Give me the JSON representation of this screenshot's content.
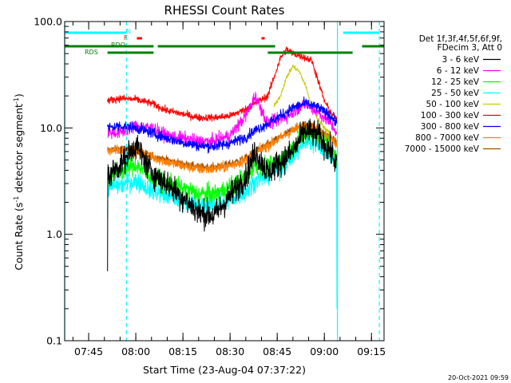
{
  "chart_data": {
    "type": "line",
    "title": "RHESSI Count Rates",
    "xlabel": "Start Time (23-Aug-04 07:37:22)",
    "ylabel_main": "Count Rate (s",
    "ylabel_sup1": "-1",
    "ylabel_mid": " detector segment",
    "ylabel_sup2": "-1",
    "ylabel_end": ")",
    "y_scale": "log",
    "ylim": [
      0.1,
      100.0
    ],
    "xlim": [
      "07:37:22",
      "09:19:00"
    ],
    "x_tick_labels": [
      "07:45",
      "08:00",
      "08:15",
      "08:30",
      "08:45",
      "09:00",
      "09:15"
    ],
    "y_tick_labels": [
      "0.1",
      "1.0",
      "10.0",
      "100.0"
    ],
    "legend_header": [
      "Det 1f,3f,4f,5f,6f,9f,",
      "FDecim 3, Att 0"
    ],
    "legend_placement": "right",
    "timestamp": "20-Oct-2021 09:59",
    "data_start": "07:51:00",
    "data_end": "09:04:50",
    "series": [
      {
        "name": "3 - 6 keV",
        "color": "#000000",
        "t": [
          "07:51",
          "07:55",
          "08:00",
          "08:05",
          "08:10",
          "08:15",
          "08:20",
          "08:25",
          "08:30",
          "08:35",
          "08:38",
          "08:42",
          "08:46",
          "08:50",
          "08:54",
          "08:58",
          "09:02",
          "09:04"
        ],
        "values": [
          3.5,
          4.5,
          7.0,
          3.8,
          3.0,
          2.2,
          1.6,
          1.5,
          2.3,
          3.5,
          6.0,
          3.8,
          4.8,
          6.0,
          9.5,
          8.5,
          6.0,
          4.5
        ]
      },
      {
        "name": "6 - 12 keV",
        "color": "#ff00ff",
        "t": [
          "07:51",
          "07:55",
          "08:00",
          "08:05",
          "08:10",
          "08:15",
          "08:20",
          "08:25",
          "08:30",
          "08:35",
          "08:38",
          "08:42",
          "08:46",
          "08:50",
          "08:54",
          "08:58",
          "09:02",
          "09:04"
        ],
        "values": [
          9.0,
          9.0,
          10.5,
          10.0,
          8.5,
          8.0,
          7.5,
          7.5,
          8.5,
          13.0,
          20.0,
          11.0,
          12.0,
          14.0,
          17.0,
          14.0,
          11.0,
          9.0
        ]
      },
      {
        "name": "12 - 25 keV",
        "color": "#00ff00",
        "t": [
          "07:51",
          "07:55",
          "08:00",
          "08:05",
          "08:10",
          "08:15",
          "08:20",
          "08:25",
          "08:30",
          "08:35",
          "08:38",
          "08:42",
          "08:46",
          "08:50",
          "08:54",
          "08:58",
          "09:02",
          "09:04"
        ],
        "values": [
          3.5,
          4.0,
          4.5,
          3.5,
          3.0,
          2.7,
          2.4,
          2.4,
          2.8,
          3.5,
          4.5,
          4.3,
          5.0,
          6.5,
          9.0,
          8.5,
          6.5,
          5.0
        ]
      },
      {
        "name": "25 - 50 keV",
        "color": "#00ffff",
        "t": [
          "07:51",
          "07:55",
          "08:00",
          "08:05",
          "08:10",
          "08:15",
          "08:20",
          "08:25",
          "08:30",
          "08:35",
          "08:38",
          "08:42",
          "08:46",
          "08:50",
          "08:54",
          "08:58",
          "09:02",
          "09:04"
        ],
        "values": [
          2.8,
          2.9,
          3.2,
          2.6,
          2.3,
          2.1,
          1.9,
          1.9,
          2.1,
          2.5,
          3.2,
          3.5,
          4.2,
          5.5,
          7.5,
          7.0,
          5.5,
          4.5
        ]
      },
      {
        "name": "50 - 100 keV",
        "color": "#c8c800",
        "t": [
          "08:44",
          "08:46",
          "08:48",
          "08:50",
          "08:52",
          "08:54",
          "08:56",
          "08:58",
          "09:00",
          "09:02"
        ],
        "values": [
          16.0,
          20.0,
          30.0,
          38.0,
          34.0,
          25.0,
          16.0,
          12.0,
          10.0,
          9.0
        ]
      },
      {
        "name": "100 - 300 keV",
        "color": "#ff0000",
        "t": [
          "07:51",
          "07:55",
          "08:00",
          "08:05",
          "08:10",
          "08:15",
          "08:20",
          "08:25",
          "08:30",
          "08:35",
          "08:38",
          "08:42",
          "08:44",
          "08:46",
          "08:48",
          "08:50",
          "08:53",
          "08:56",
          "08:58",
          "09:00",
          "09:02",
          "09:04"
        ],
        "values": [
          18.0,
          19.0,
          18.5,
          17.0,
          14.5,
          13.5,
          12.5,
          12.5,
          13.0,
          15.0,
          17.0,
          20.0,
          30.0,
          45.0,
          55.0,
          50.0,
          47.0,
          43.0,
          28.0,
          18.0,
          14.0,
          12.0
        ]
      },
      {
        "name": "300 - 800 keV",
        "color": "#0000ff",
        "t": [
          "07:51",
          "07:55",
          "08:00",
          "08:05",
          "08:10",
          "08:15",
          "08:20",
          "08:25",
          "08:30",
          "08:35",
          "08:38",
          "08:42",
          "08:46",
          "08:50",
          "08:54",
          "08:58",
          "09:02",
          "09:04"
        ],
        "values": [
          10.0,
          10.5,
          10.0,
          9.0,
          8.0,
          7.3,
          6.8,
          6.7,
          7.2,
          8.2,
          9.5,
          11.0,
          13.0,
          15.5,
          17.0,
          15.5,
          13.0,
          11.0
        ]
      },
      {
        "name": "800 - 7000 keV",
        "color": "#ff8000",
        "t": [
          "07:51",
          "07:55",
          "08:00",
          "08:05",
          "08:10",
          "08:15",
          "08:20",
          "08:25",
          "08:30",
          "08:35",
          "08:38",
          "08:42",
          "08:46",
          "08:50",
          "08:54",
          "08:58",
          "09:02",
          "09:04"
        ],
        "values": [
          6.0,
          6.2,
          6.0,
          5.3,
          4.8,
          4.4,
          4.1,
          4.1,
          4.4,
          5.0,
          5.8,
          6.8,
          8.0,
          9.5,
          10.5,
          9.5,
          8.0,
          7.0
        ]
      },
      {
        "name": "7000 - 15000 keV",
        "color": "#a05000",
        "t": [
          "07:51",
          "07:55",
          "08:00",
          "08:05",
          "08:10",
          "08:15",
          "08:20",
          "08:25",
          "08:30",
          "08:35",
          "08:38",
          "08:42",
          "08:46",
          "08:50",
          "08:54",
          "08:58",
          "09:02",
          "09:04"
        ],
        "values": [
          6.2,
          6.4,
          6.2,
          5.5,
          5.0,
          4.6,
          4.3,
          4.3,
          4.6,
          5.2,
          6.0,
          7.0,
          8.2,
          9.8,
          10.8,
          9.8,
          8.2,
          7.2
        ]
      }
    ],
    "flag_bars": [
      {
        "label": "N",
        "color": "#00ffff",
        "level": 1,
        "intervals": [
          [
            "07:37:22",
            "07:57:00"
          ],
          [
            "09:06:00",
            "09:17:30"
          ]
        ]
      },
      {
        "label": "F",
        "color": "#ff0000",
        "level": 2,
        "intervals": [
          [
            "08:00:20",
            "08:02:00"
          ],
          [
            "08:40:00",
            "08:41:00"
          ]
        ]
      },
      {
        "label": "RDO",
        "color": "#008000",
        "level": 3,
        "intervals": [
          [
            "07:37:22",
            "08:05:40"
          ],
          [
            "08:07:00",
            "08:44:20"
          ],
          [
            "09:12:00",
            "09:19:00"
          ]
        ]
      },
      {
        "label": "RDS",
        "color": "#008000",
        "level": 4,
        "intervals": [
          [
            "07:51:00",
            "08:05:40"
          ],
          [
            "08:42:00",
            "09:09:00"
          ]
        ]
      }
    ],
    "vertical_markers": [
      {
        "time": "07:37:22",
        "style": "solid",
        "color": "#00ffff"
      },
      {
        "time": "07:57:00",
        "style": "dashed",
        "color": "#00ffff"
      },
      {
        "time": "09:04:10",
        "style": "solid",
        "color": "#00ffff"
      },
      {
        "time": "09:17:30",
        "style": "dashed",
        "color": "#00ffff"
      }
    ]
  }
}
